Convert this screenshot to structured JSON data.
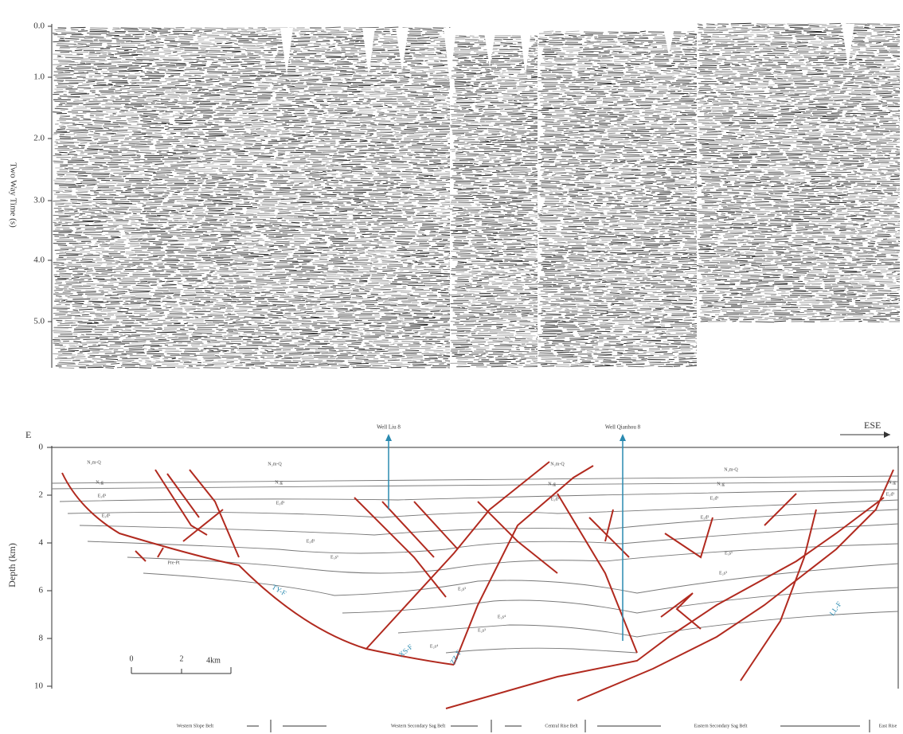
{
  "top_panel": {
    "axis_title": "Two Way Time (s)",
    "ticks": [
      "0.0",
      "1.0",
      "2.0",
      "3.0",
      "4.0",
      "5.0"
    ]
  },
  "bottom_panel": {
    "direction_left": "E",
    "direction_right": "ESE",
    "axis_title": "Depth (km)",
    "ticks": [
      "0",
      "2",
      "4",
      "6",
      "8",
      "10"
    ],
    "wells": [
      "Well Liu 8",
      "Well Qianhou 8"
    ],
    "faults": [
      "TY-F",
      "XS-F",
      "ZZ-F",
      "LL-F"
    ],
    "scale_bar": [
      "0",
      "2",
      "4km"
    ],
    "units": [
      "N₂m-Q",
      "N₂m-Q",
      "N₂m-Q",
      "N₂m-Q",
      "N₁g",
      "N₁g",
      "N₁g",
      "N₁g",
      "N₁g",
      "E₃d¹",
      "E₃d¹",
      "E₃d¹",
      "E₃d¹",
      "E₃d¹",
      "E₃d²",
      "E₃d²",
      "E₃d²",
      "E₃s¹",
      "E₃s¹",
      "E₂s³",
      "E₂s³",
      "E₂s³",
      "E₂s⁴",
      "E₂s⁴",
      "Pre-Pt"
    ],
    "belts": [
      "Western Slope Belt",
      "Western Secondary Sag Belt",
      "Central Rise Belt",
      "Eastern Secondary Sag Belt",
      "East Rise"
    ]
  }
}
